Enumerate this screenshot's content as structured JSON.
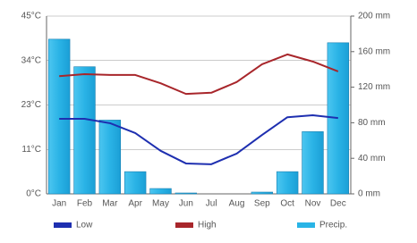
{
  "chart_data": {
    "type": "combo",
    "categories": [
      "Jan",
      "Feb",
      "Mar",
      "Apr",
      "May",
      "Jun",
      "Jul",
      "Aug",
      "Sep",
      "Oct",
      "Nov",
      "Dec"
    ],
    "ylim": [
      0,
      45
    ],
    "yticks": [
      {
        "value": 0,
        "label": "0°C"
      },
      {
        "value": 11.25,
        "label": "11°C"
      },
      {
        "value": 22.5,
        "label": "23°C"
      },
      {
        "value": 33.75,
        "label": "34°C"
      },
      {
        "value": 45,
        "label": "45°C"
      }
    ],
    "y2lim": [
      0,
      200
    ],
    "y2ticks": [
      {
        "value": 0,
        "label": "0 mm"
      },
      {
        "value": 40,
        "label": "40 mm"
      },
      {
        "value": 80,
        "label": "80 mm"
      },
      {
        "value": 120,
        "label": "120 mm"
      },
      {
        "value": 160,
        "label": "160 mm"
      },
      {
        "value": 200,
        "label": "200 mm"
      }
    ],
    "grid": true,
    "legend": "bottom",
    "series": [
      {
        "name": "Low",
        "type": "line",
        "color": "#1e2fb0",
        "values": [
          19.0,
          19.0,
          17.9,
          15.4,
          10.9,
          7.7,
          7.5,
          10.2,
          14.9,
          19.4,
          19.9,
          19.2
        ]
      },
      {
        "name": "High",
        "type": "line",
        "color": "#a8262b",
        "values": [
          29.8,
          30.3,
          30.1,
          30.1,
          28.0,
          25.3,
          25.6,
          28.3,
          32.8,
          35.3,
          33.5,
          31.0
        ]
      },
      {
        "name": "Precip.",
        "type": "bar",
        "axis": "y2",
        "color": "#29b4e6",
        "values": [
          174,
          143,
          83,
          25,
          6,
          1,
          0,
          0,
          2,
          25,
          70,
          170
        ]
      }
    ]
  }
}
